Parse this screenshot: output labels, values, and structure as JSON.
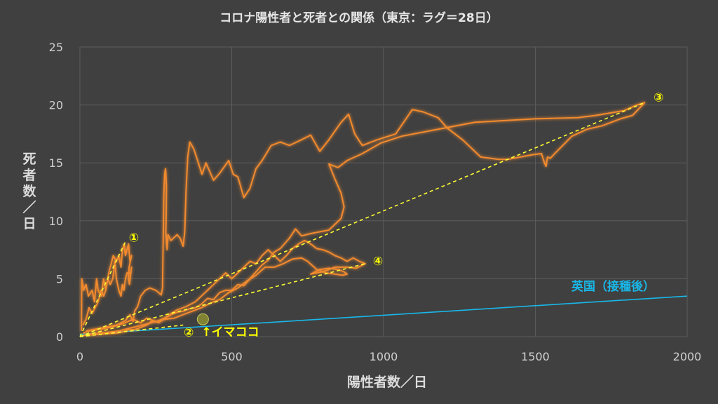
{
  "chart_data": {
    "type": "scatter",
    "title": "コロナ陽性者と死者との関係（東京：ラグ＝28日）",
    "xlabel": "陽性者数／日",
    "ylabel": "死者数／日",
    "xlim": [
      0,
      2000
    ],
    "ylim": [
      0,
      25
    ],
    "x_ticks": [
      "0",
      "500",
      "1000",
      "1500",
      "2000"
    ],
    "y_ticks": [
      "0",
      "5",
      "10",
      "15",
      "20",
      "25"
    ],
    "grid": true,
    "colors": {
      "tokyo": "#f28a2e",
      "uk": "#19b7e8",
      "guide": "#ffff33",
      "background": "#404040"
    },
    "series": [
      {
        "points": [
          [
            5,
            0.5
          ],
          [
            6,
            5
          ],
          [
            12,
            4
          ],
          [
            20,
            4.5
          ],
          [
            28,
            3.5
          ],
          [
            40,
            4
          ],
          [
            48,
            3
          ],
          [
            55,
            5
          ],
          [
            60,
            4
          ],
          [
            70,
            3.5
          ],
          [
            78,
            5
          ],
          [
            85,
            4
          ],
          [
            95,
            5.5
          ],
          [
            110,
            7
          ],
          [
            120,
            6.5
          ],
          [
            128,
            7
          ],
          [
            135,
            6
          ],
          [
            140,
            7.5
          ],
          [
            146,
            8
          ],
          [
            150,
            7
          ],
          [
            155,
            7.5
          ],
          [
            160,
            8
          ],
          [
            165,
            6.5
          ],
          [
            170,
            7
          ],
          [
            162,
            6
          ],
          [
            160,
            5
          ],
          [
            163,
            4.5
          ],
          [
            170,
            6
          ],
          [
            168,
            5.5
          ],
          [
            155,
            5.5
          ],
          [
            150,
            5
          ],
          [
            145,
            4
          ],
          [
            140,
            4.5
          ],
          [
            135,
            3.5
          ],
          [
            128,
            4
          ],
          [
            120,
            5
          ],
          [
            115,
            6.5
          ],
          [
            108,
            5
          ],
          [
            100,
            4.5
          ],
          [
            92,
            5
          ],
          [
            85,
            4
          ],
          [
            78,
            3.5
          ],
          [
            70,
            4
          ],
          [
            60,
            3
          ],
          [
            50,
            2.5
          ],
          [
            40,
            2
          ],
          [
            30,
            2.5
          ],
          [
            20,
            1.5
          ],
          [
            10,
            1
          ]
        ]
      },
      {
        "points": [
          [
            10,
            0.3
          ],
          [
            40,
            0.6
          ],
          [
            80,
            0.8
          ],
          [
            120,
            1
          ],
          [
            150,
            1.4
          ],
          [
            165,
            1.9
          ],
          [
            175,
            1.3
          ],
          [
            180,
            2.2
          ],
          [
            190,
            2.6
          ],
          [
            200,
            3.5
          ],
          [
            215,
            4
          ],
          [
            230,
            4.2
          ],
          [
            250,
            4
          ],
          [
            268,
            3.6
          ],
          [
            272,
            4.2
          ],
          [
            276,
            12
          ],
          [
            278,
            13.5
          ],
          [
            280,
            14.2
          ],
          [
            282,
            14.5
          ],
          [
            285,
            13
          ],
          [
            284,
            10.5
          ],
          [
            283,
            9
          ],
          [
            287,
            7.5
          ],
          [
            290,
            8.8
          ],
          [
            300,
            8.3
          ],
          [
            320,
            8.8
          ],
          [
            330,
            8.5
          ],
          [
            340,
            7.8
          ],
          [
            345,
            9
          ],
          [
            350,
            12.8
          ],
          [
            355,
            15.5
          ],
          [
            362,
            16.8
          ],
          [
            375,
            16.2
          ],
          [
            390,
            15
          ],
          [
            402,
            14
          ],
          [
            415,
            15
          ],
          [
            440,
            13.5
          ],
          [
            460,
            14.1
          ],
          [
            490,
            15.2
          ],
          [
            505,
            14
          ],
          [
            520,
            13.8
          ],
          [
            540,
            12
          ],
          [
            560,
            12.8
          ],
          [
            580,
            14.5
          ],
          [
            600,
            15.2
          ],
          [
            630,
            16.5
          ],
          [
            660,
            16.8
          ],
          [
            690,
            16.5
          ],
          [
            730,
            17
          ],
          [
            760,
            17.4
          ],
          [
            790,
            16
          ],
          [
            820,
            17
          ],
          [
            860,
            18.5
          ],
          [
            885,
            19.2
          ],
          [
            905,
            17.5
          ],
          [
            930,
            16.5
          ],
          [
            980,
            17
          ],
          [
            1040,
            17.5
          ],
          [
            1095,
            19.6
          ],
          [
            1130,
            19.4
          ],
          [
            1180,
            18.9
          ],
          [
            1210,
            18
          ],
          [
            1260,
            17
          ],
          [
            1320,
            15.5
          ],
          [
            1380,
            15.3
          ],
          [
            1410,
            15.3
          ],
          [
            1450,
            15.5
          ],
          [
            1490,
            15.7
          ],
          [
            1520,
            15.8
          ],
          [
            1530,
            15
          ],
          [
            1535,
            14.7
          ],
          [
            1540,
            15.5
          ],
          [
            1550,
            15.4
          ],
          [
            1560,
            15.7
          ],
          [
            1590,
            16.5
          ],
          [
            1620,
            17.3
          ],
          [
            1670,
            17.9
          ],
          [
            1720,
            18.2
          ],
          [
            1780,
            18.8
          ],
          [
            1820,
            19.1
          ],
          [
            1860,
            20.2
          ],
          [
            1835,
            20
          ],
          [
            1790,
            19.5
          ],
          [
            1700,
            19.1
          ],
          [
            1640,
            18.9
          ],
          [
            1500,
            18.8
          ],
          [
            1300,
            18.5
          ],
          [
            1160,
            17.8
          ],
          [
            1060,
            17.3
          ],
          [
            990,
            16.7
          ],
          [
            930,
            15.8
          ],
          [
            880,
            15.2
          ],
          [
            850,
            14.6
          ],
          [
            820,
            14.9
          ],
          [
            840,
            13.6
          ],
          [
            860,
            12.4
          ],
          [
            870,
            11.2
          ],
          [
            860,
            10.2
          ],
          [
            820,
            9.2
          ],
          [
            780,
            9
          ],
          [
            760,
            8.9
          ],
          [
            730,
            8.7
          ],
          [
            710,
            9.3
          ],
          [
            690,
            8.5
          ],
          [
            680,
            8.2
          ],
          [
            660,
            7.6
          ],
          [
            640,
            7.3
          ],
          [
            620,
            6.6
          ],
          [
            600,
            6.2
          ],
          [
            580,
            5.6
          ],
          [
            560,
            5
          ],
          [
            540,
            4.4
          ],
          [
            520,
            4.5
          ],
          [
            500,
            4
          ],
          [
            480,
            4
          ],
          [
            460,
            3.8
          ],
          [
            440,
            3.2
          ],
          [
            420,
            3.3
          ],
          [
            400,
            2.8
          ],
          [
            380,
            2.5
          ],
          [
            360,
            2.4
          ],
          [
            340,
            2.2
          ],
          [
            320,
            2.1
          ],
          [
            300,
            1.9
          ],
          [
            280,
            1.6
          ],
          [
            260,
            1.2
          ],
          [
            240,
            1.4
          ],
          [
            220,
            1
          ],
          [
            200,
            0.8
          ],
          [
            180,
            0.6
          ],
          [
            160,
            0.6
          ],
          [
            140,
            0.4
          ],
          [
            120,
            0.3
          ],
          [
            80,
            0.25
          ],
          [
            40,
            0.15
          ],
          [
            10,
            0.1
          ]
        ]
      },
      {
        "points": [
          [
            20,
            0.5
          ],
          [
            60,
            0.6
          ],
          [
            100,
            0.8
          ],
          [
            140,
            1.1
          ],
          [
            175,
            1.5
          ],
          [
            200,
            1.2
          ],
          [
            220,
            1.6
          ],
          [
            250,
            1.3
          ],
          [
            280,
            1.6
          ],
          [
            300,
            2
          ],
          [
            320,
            2.3
          ],
          [
            350,
            2.6
          ],
          [
            380,
            3
          ],
          [
            400,
            3.5
          ],
          [
            420,
            4
          ],
          [
            440,
            4.5
          ],
          [
            460,
            5
          ],
          [
            480,
            5.5
          ],
          [
            500,
            5
          ],
          [
            520,
            5.5
          ],
          [
            540,
            6
          ],
          [
            560,
            6.5
          ],
          [
            580,
            6.3
          ],
          [
            600,
            7
          ],
          [
            620,
            7.5
          ],
          [
            640,
            7
          ],
          [
            660,
            6.5
          ],
          [
            680,
            7
          ],
          [
            700,
            7.6
          ],
          [
            720,
            8
          ],
          [
            740,
            8.3
          ],
          [
            760,
            8
          ],
          [
            780,
            7.6
          ],
          [
            800,
            7.5
          ],
          [
            820,
            7.3
          ],
          [
            840,
            7
          ],
          [
            860,
            6.8
          ],
          [
            880,
            6.5
          ],
          [
            900,
            6.8
          ],
          [
            920,
            6.5
          ],
          [
            940,
            6.3
          ],
          [
            910,
            5.9
          ],
          [
            880,
            6
          ],
          [
            840,
            6
          ],
          [
            800,
            5.6
          ],
          [
            780,
            5.5
          ],
          [
            760,
            5.4
          ],
          [
            790,
            5.8
          ],
          [
            820,
            5.9
          ],
          [
            850,
            5.8
          ],
          [
            870,
            5.6
          ],
          [
            880,
            5.4
          ],
          [
            865,
            5.3
          ],
          [
            840,
            5.4
          ],
          [
            810,
            5.5
          ],
          [
            780,
            5.8
          ],
          [
            750,
            6.5
          ],
          [
            730,
            6.8
          ],
          [
            700,
            6.7
          ],
          [
            670,
            6.3
          ],
          [
            640,
            6
          ],
          [
            610,
            6
          ],
          [
            580,
            5.3
          ],
          [
            550,
            4.8
          ],
          [
            520,
            4.2
          ],
          [
            490,
            3.8
          ],
          [
            460,
            3.2
          ],
          [
            430,
            2.9
          ],
          [
            400,
            2.5
          ],
          [
            370,
            2.2
          ],
          [
            340,
            1.9
          ],
          [
            310,
            1.6
          ],
          [
            280,
            1.5
          ],
          [
            250,
            1.3
          ],
          [
            220,
            1.1
          ],
          [
            190,
            0.9
          ],
          [
            160,
            0.7
          ],
          [
            130,
            0.5
          ],
          [
            100,
            0.4
          ],
          [
            60,
            0.3
          ],
          [
            30,
            0.2
          ]
        ]
      }
    ],
    "uk_line": {
      "name": "英国（接種後）",
      "points": [
        [
          0,
          0.2
        ],
        [
          2000,
          3.5
        ]
      ]
    },
    "guide_lines": [
      {
        "label": "①",
        "from": [
          0,
          0
        ],
        "to": [
          150,
          8.2
        ]
      },
      {
        "label": "②",
        "from": [
          0,
          0
        ],
        "to": [
          340,
          1.0
        ]
      },
      {
        "label": "③",
        "from": [
          0,
          0
        ],
        "to": [
          1860,
          20.2
        ]
      },
      {
        "label": "④",
        "from": [
          0,
          0
        ],
        "to": [
          940,
          6.3
        ]
      }
    ],
    "highlight": {
      "label": "↑イマココ",
      "point": [
        405,
        1.5
      ]
    }
  }
}
